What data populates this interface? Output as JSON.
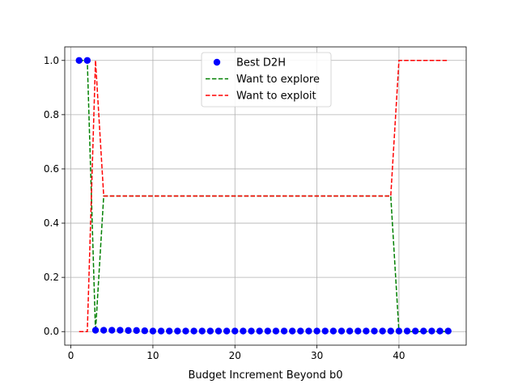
{
  "chart_data": {
    "type": "scatter",
    "title": "",
    "xlabel": "Budget Increment Beyond b0",
    "ylabel": "",
    "xlim": [
      -0.75,
      48.2
    ],
    "ylim": [
      -0.05,
      1.05
    ],
    "xticks": [
      0,
      10,
      20,
      30,
      40
    ],
    "yticks": [
      0.0,
      0.2,
      0.4,
      0.6,
      0.8,
      1.0
    ],
    "ytick_labels": [
      "0.0",
      "0.2",
      "0.4",
      "0.6",
      "0.8",
      "1.0"
    ],
    "grid": true,
    "legend_position": "top-center",
    "series": [
      {
        "name": "Best D2H",
        "kind": "scatter",
        "color": "#0000ff",
        "x": [
          1,
          2,
          3,
          4,
          5,
          6,
          7,
          8,
          9,
          10,
          11,
          12,
          13,
          14,
          15,
          16,
          17,
          18,
          19,
          20,
          21,
          22,
          23,
          24,
          25,
          26,
          27,
          28,
          29,
          30,
          31,
          32,
          33,
          34,
          35,
          36,
          37,
          38,
          39,
          40,
          41,
          42,
          43,
          44,
          45,
          46
        ],
        "y": [
          1.0,
          1.0,
          0.005,
          0.005,
          0.005,
          0.005,
          0.004,
          0.004,
          0.003,
          0.002,
          0.002,
          0.002,
          0.002,
          0.002,
          0.002,
          0.002,
          0.002,
          0.002,
          0.002,
          0.002,
          0.002,
          0.002,
          0.002,
          0.002,
          0.002,
          0.002,
          0.002,
          0.002,
          0.002,
          0.002,
          0.002,
          0.002,
          0.002,
          0.002,
          0.002,
          0.002,
          0.002,
          0.002,
          0.002,
          0.002,
          0.002,
          0.002,
          0.002,
          0.002,
          0.002,
          0.002
        ]
      },
      {
        "name": "Want to explore",
        "kind": "line",
        "style": "dashed",
        "color": "#008000",
        "x": [
          1,
          2,
          3,
          4,
          5,
          6,
          7,
          8,
          9,
          10,
          11,
          12,
          13,
          14,
          15,
          16,
          17,
          18,
          19,
          20,
          21,
          22,
          23,
          24,
          25,
          26,
          27,
          28,
          29,
          30,
          31,
          32,
          33,
          34,
          35,
          36,
          37,
          38,
          39,
          40,
          41,
          42,
          43,
          44,
          45,
          46
        ],
        "y": [
          1.0,
          1.0,
          0.0,
          0.5,
          0.5,
          0.5,
          0.5,
          0.5,
          0.5,
          0.5,
          0.5,
          0.5,
          0.5,
          0.5,
          0.5,
          0.5,
          0.5,
          0.5,
          0.5,
          0.5,
          0.5,
          0.5,
          0.5,
          0.5,
          0.5,
          0.5,
          0.5,
          0.5,
          0.5,
          0.5,
          0.5,
          0.5,
          0.5,
          0.5,
          0.5,
          0.5,
          0.5,
          0.5,
          0.5,
          0.0,
          0.0,
          0.0,
          0.0,
          0.0,
          0.0,
          0.0
        ]
      },
      {
        "name": "Want to exploit",
        "kind": "line",
        "style": "dashed",
        "color": "#ff0000",
        "x": [
          1,
          2,
          3,
          4,
          5,
          6,
          7,
          8,
          9,
          10,
          11,
          12,
          13,
          14,
          15,
          16,
          17,
          18,
          19,
          20,
          21,
          22,
          23,
          24,
          25,
          26,
          27,
          28,
          29,
          30,
          31,
          32,
          33,
          34,
          35,
          36,
          37,
          38,
          39,
          40,
          41,
          42,
          43,
          44,
          45,
          46
        ],
        "y": [
          0.0,
          0.0,
          1.0,
          0.5,
          0.5,
          0.5,
          0.5,
          0.5,
          0.5,
          0.5,
          0.5,
          0.5,
          0.5,
          0.5,
          0.5,
          0.5,
          0.5,
          0.5,
          0.5,
          0.5,
          0.5,
          0.5,
          0.5,
          0.5,
          0.5,
          0.5,
          0.5,
          0.5,
          0.5,
          0.5,
          0.5,
          0.5,
          0.5,
          0.5,
          0.5,
          0.5,
          0.5,
          0.5,
          0.5,
          1.0,
          1.0,
          1.0,
          1.0,
          1.0,
          1.0,
          1.0
        ]
      }
    ]
  }
}
